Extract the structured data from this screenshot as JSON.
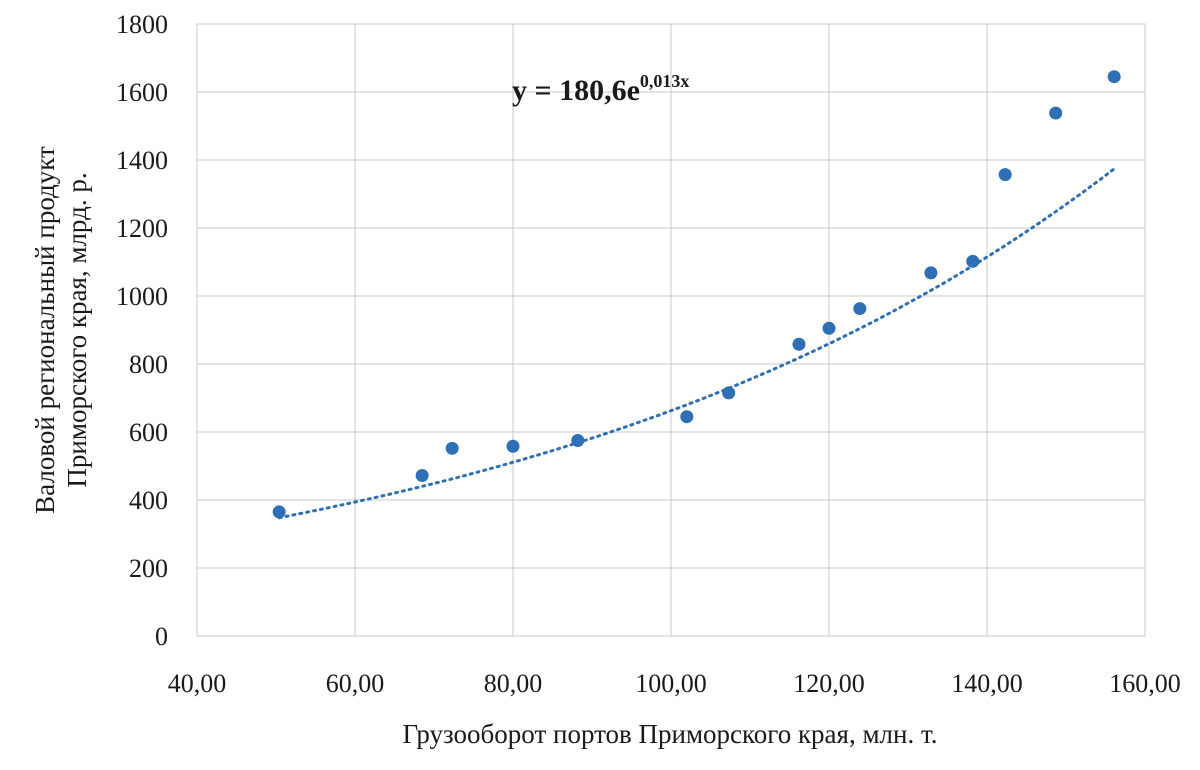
{
  "chart_data": {
    "type": "scatter",
    "xlabel": "Грузооборот портов Приморского края, млн. т.",
    "ylabel_lines": [
      "Валовой региональный продукт",
      "Приморского края, млрд. р."
    ],
    "xlim": [
      40,
      160
    ],
    "ylim": [
      0,
      1800
    ],
    "x_ticks": [
      40,
      60,
      80,
      100,
      120,
      140,
      160
    ],
    "x_tick_labels": [
      "40,00",
      "60,00",
      "80,00",
      "100,00",
      "120,00",
      "140,00",
      "160,00"
    ],
    "y_ticks": [
      0,
      200,
      400,
      600,
      800,
      1000,
      1200,
      1400,
      1600,
      1800
    ],
    "y_tick_labels": [
      "0",
      "200",
      "400",
      "600",
      "800",
      "1000",
      "1200",
      "1400",
      "1600",
      "1800"
    ],
    "grid": true,
    "points": [
      {
        "x": 50.4,
        "y": 365
      },
      {
        "x": 68.5,
        "y": 472
      },
      {
        "x": 72.3,
        "y": 552
      },
      {
        "x": 80.0,
        "y": 558
      },
      {
        "x": 88.2,
        "y": 575
      },
      {
        "x": 102.0,
        "y": 645
      },
      {
        "x": 107.3,
        "y": 715
      },
      {
        "x": 116.2,
        "y": 858
      },
      {
        "x": 120.0,
        "y": 905
      },
      {
        "x": 123.9,
        "y": 963
      },
      {
        "x": 132.9,
        "y": 1068
      },
      {
        "x": 138.2,
        "y": 1102
      },
      {
        "x": 142.3,
        "y": 1357
      },
      {
        "x": 148.7,
        "y": 1538
      },
      {
        "x": 156.1,
        "y": 1645
      }
    ],
    "trendline": {
      "type": "exponential",
      "a": 180.6,
      "b": 0.013,
      "x_range": [
        50.4,
        156.1
      ],
      "label_main": "y = 180,6e",
      "label_exponent": "0,013x"
    },
    "colors": {
      "points": "#2e6fb5",
      "trendline": "#2e6fb5",
      "grid": "#c8c8c8"
    }
  }
}
